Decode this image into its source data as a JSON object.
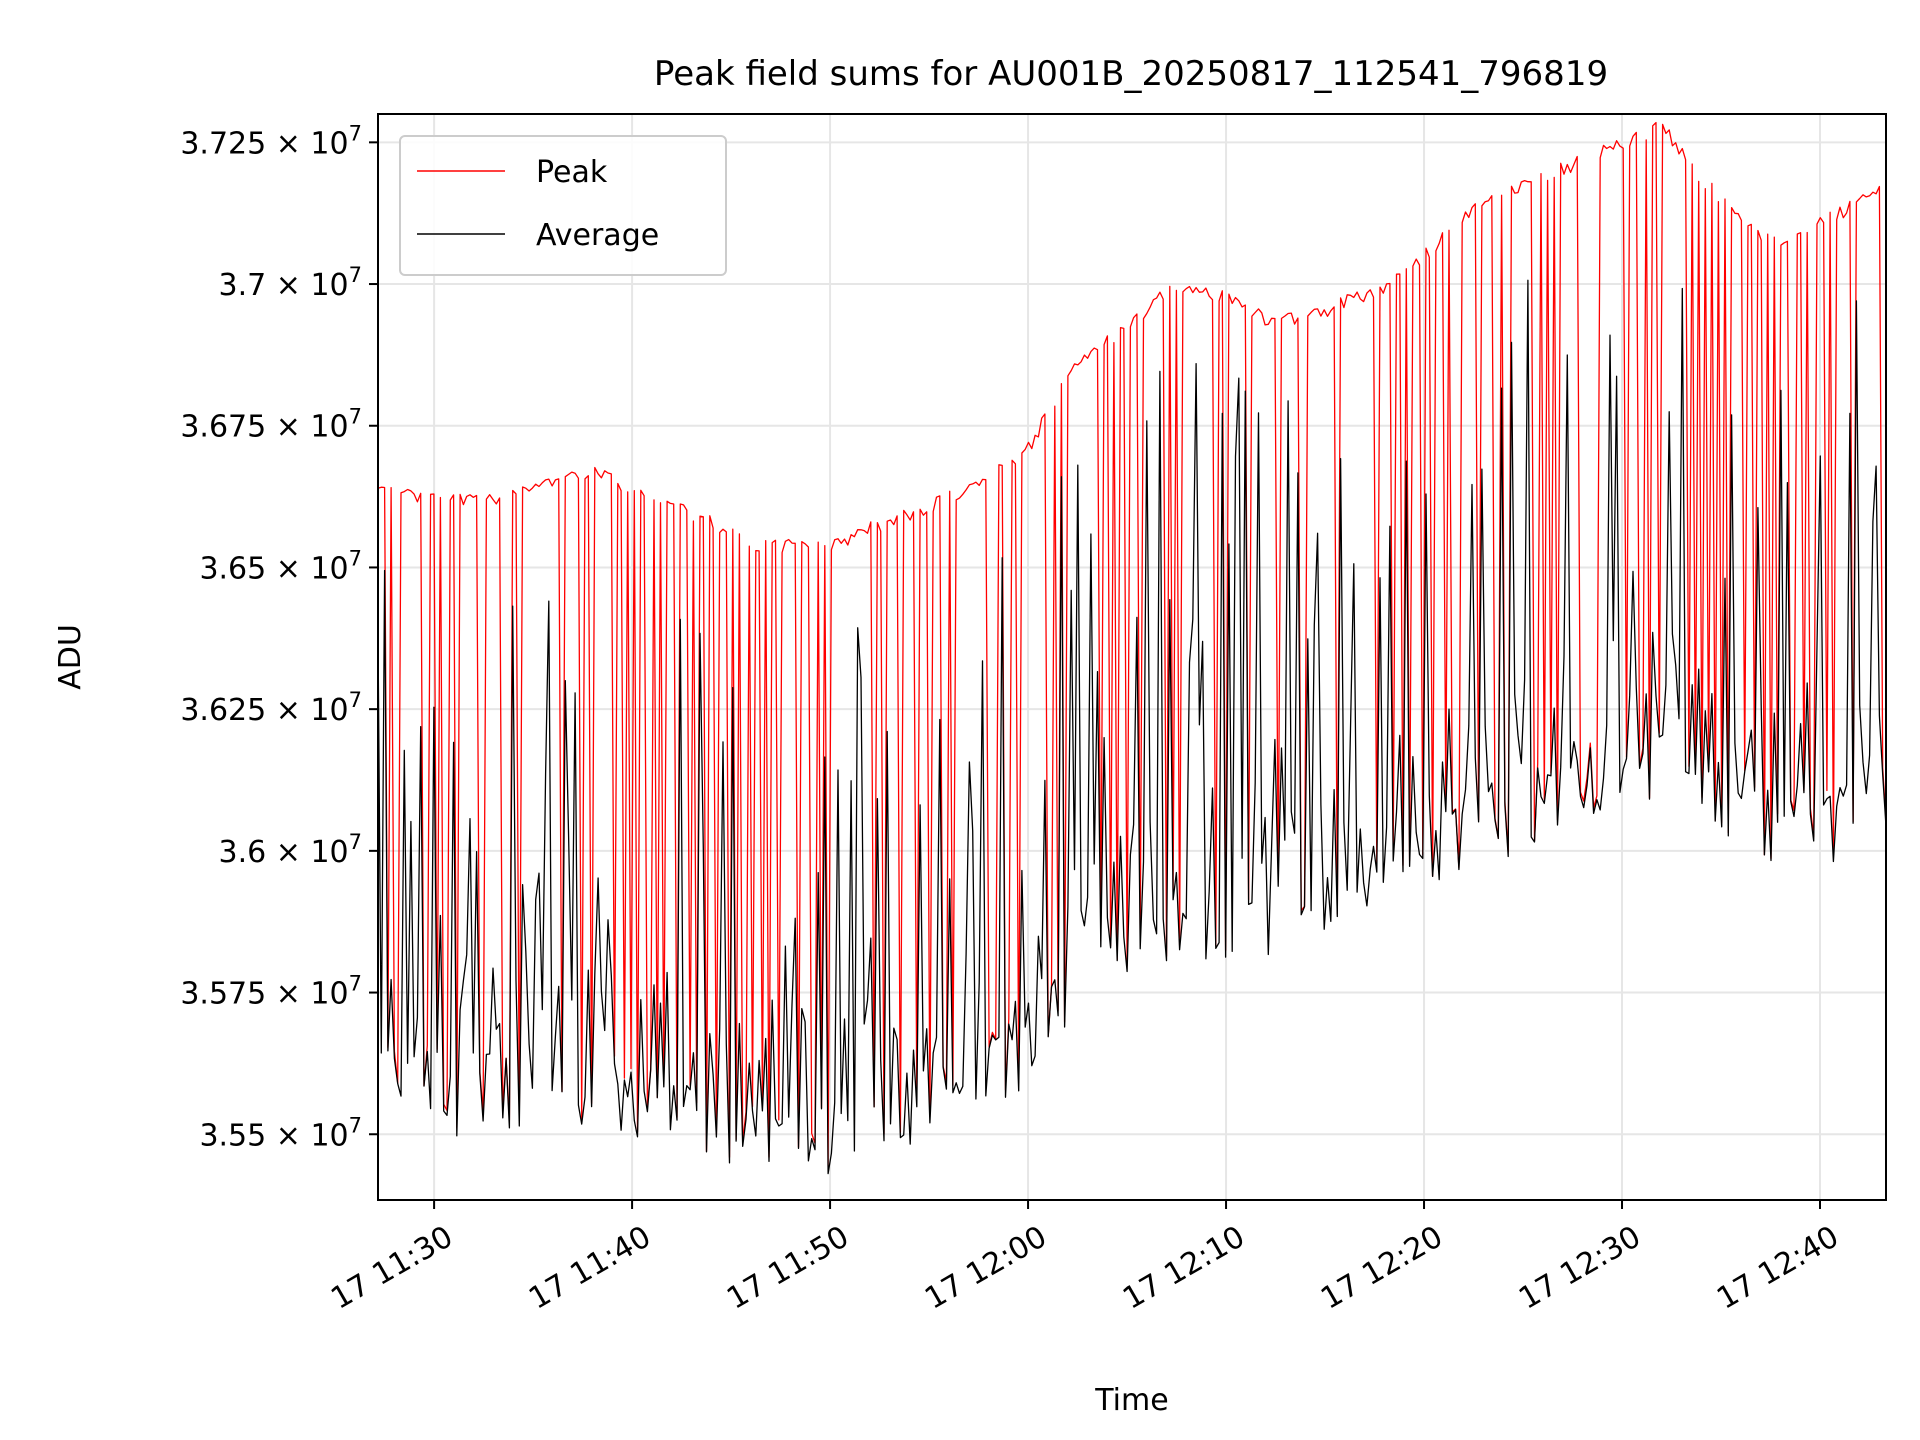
{
  "chart_data": {
    "type": "line",
    "title": "Peak field sums for AU001B_20250817_112541_796819",
    "xlabel": "Time",
    "ylabel": "ADU",
    "x_range": [
      "2025-08-17 11:27:10",
      "2025-08-17 12:43:20"
    ],
    "ylim": [
      35384000,
      37300000
    ],
    "grid": true,
    "legend_position": "upper-left",
    "xticks": [
      {
        "t": "2025-08-17 11:30",
        "label": "17 11:30"
      },
      {
        "t": "2025-08-17 11:40",
        "label": "17 11:40"
      },
      {
        "t": "2025-08-17 11:50",
        "label": "17 11:50"
      },
      {
        "t": "2025-08-17 12:00",
        "label": "17 12:00"
      },
      {
        "t": "2025-08-17 12:10",
        "label": "17 12:10"
      },
      {
        "t": "2025-08-17 12:20",
        "label": "17 12:20"
      },
      {
        "t": "2025-08-17 12:30",
        "label": "17 12:30"
      },
      {
        "t": "2025-08-17 12:40",
        "label": "17 12:40"
      }
    ],
    "yticks": [
      {
        "value": 35500000,
        "mantissa": "3.55"
      },
      {
        "value": 35750000,
        "mantissa": "3.575"
      },
      {
        "value": 36000000,
        "mantissa": "3.6"
      },
      {
        "value": 36250000,
        "mantissa": "3.625"
      },
      {
        "value": 36500000,
        "mantissa": "3.65"
      },
      {
        "value": 36750000,
        "mantissa": "3.675"
      },
      {
        "value": 37000000,
        "mantissa": "3.7"
      },
      {
        "value": 37250000,
        "mantissa": "3.725"
      }
    ],
    "ytick_format": {
      "multiplier": "×",
      "base": "10",
      "exponent": "7"
    },
    "peak_envelope": [
      [
        "2025-08-17 11:27:10",
        36650000
      ],
      [
        "2025-08-17 11:30:00",
        36630000
      ],
      [
        "2025-08-17 11:33:00",
        36630000
      ],
      [
        "2025-08-17 11:35:00",
        36650000
      ],
      [
        "2025-08-17 11:37:00",
        36670000
      ],
      [
        "2025-08-17 11:38:00",
        36680000
      ],
      [
        "2025-08-17 11:40:00",
        36650000
      ],
      [
        "2025-08-17 11:42:00",
        36620000
      ],
      [
        "2025-08-17 11:44:00",
        36590000
      ],
      [
        "2025-08-17 11:46:00",
        36550000
      ],
      [
        "2025-08-17 11:48:00",
        36550000
      ],
      [
        "2025-08-17 11:50:00",
        36550000
      ],
      [
        "2025-08-17 11:52:00",
        36580000
      ],
      [
        "2025-08-17 11:55:00",
        36620000
      ],
      [
        "2025-08-17 11:58:00",
        36670000
      ],
      [
        "2025-08-17 12:00:00",
        36720000
      ],
      [
        "2025-08-17 12:02:00",
        36850000
      ],
      [
        "2025-08-17 12:04:00",
        36910000
      ],
      [
        "2025-08-17 12:06:00",
        36960000
      ],
      [
        "2025-08-17 12:07:00",
        37000000
      ],
      [
        "2025-08-17 12:10:00",
        36990000
      ],
      [
        "2025-08-17 12:12:00",
        36950000
      ],
      [
        "2025-08-17 12:14:00",
        36950000
      ],
      [
        "2025-08-17 12:16:00",
        36980000
      ],
      [
        "2025-08-17 12:18:00",
        37000000
      ],
      [
        "2025-08-17 12:20:00",
        37060000
      ],
      [
        "2025-08-17 12:22:00",
        37130000
      ],
      [
        "2025-08-17 12:24:00",
        37170000
      ],
      [
        "2025-08-17 12:26:00",
        37200000
      ],
      [
        "2025-08-17 12:28:00",
        37230000
      ],
      [
        "2025-08-17 12:30:00",
        37260000
      ],
      [
        "2025-08-17 12:32:00",
        37290000
      ],
      [
        "2025-08-17 12:34:00",
        37200000
      ],
      [
        "2025-08-17 12:36:00",
        37120000
      ],
      [
        "2025-08-17 12:38:00",
        37080000
      ],
      [
        "2025-08-17 12:40:00",
        37120000
      ],
      [
        "2025-08-17 12:43:20",
        37180000
      ]
    ],
    "average_baseline": [
      [
        "2025-08-17 11:27:10",
        35550000
      ],
      [
        "2025-08-17 11:32:00",
        35500000
      ],
      [
        "2025-08-17 11:38:00",
        35520000
      ],
      [
        "2025-08-17 11:44:00",
        35450000
      ],
      [
        "2025-08-17 11:48:00",
        35420000
      ],
      [
        "2025-08-17 11:54:00",
        35480000
      ],
      [
        "2025-08-17 12:00:00",
        35600000
      ],
      [
        "2025-08-17 12:04:00",
        35770000
      ],
      [
        "2025-08-17 12:10:00",
        35800000
      ],
      [
        "2025-08-17 12:16:00",
        35840000
      ],
      [
        "2025-08-17 12:20:00",
        35930000
      ],
      [
        "2025-08-17 12:26:00",
        36020000
      ],
      [
        "2025-08-17 12:30:00",
        36080000
      ],
      [
        "2025-08-17 12:34:00",
        36060000
      ],
      [
        "2025-08-17 12:38:00",
        35970000
      ],
      [
        "2025-08-17 12:43:20",
        36020000
      ]
    ],
    "series": [
      {
        "name": "Peak",
        "color": "#ff0000",
        "style": "dense oscillating line that mostly tracks the upper envelope with frequent drops to the lower baseline"
      },
      {
        "name": "Average",
        "color": "#000000",
        "style": "dense oscillating line that mostly stays near the lower baseline with frequent spikes up to the peak envelope"
      }
    ],
    "legend": [
      {
        "label": "Peak",
        "color": "#ff0000"
      },
      {
        "label": "Average",
        "color": "#000000"
      }
    ]
  }
}
